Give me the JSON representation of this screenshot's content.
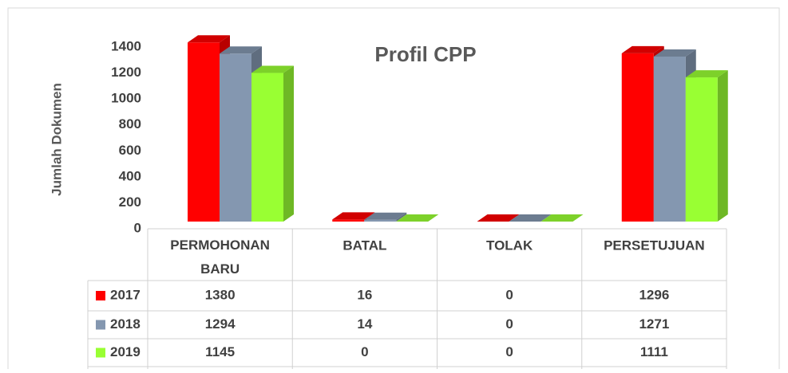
{
  "chart_data": {
    "type": "bar3d",
    "title": "Profil CPP",
    "y_label": "Jumlah Dokumen",
    "categories": [
      "PERMOHONAN BARU",
      "BATAL",
      "TOLAK",
      "PERSETUJUAN"
    ],
    "series": [
      {
        "name": "2017",
        "color": "#ff0000",
        "values": [
          1380,
          16,
          0,
          1296
        ]
      },
      {
        "name": "2018",
        "color": "#8497b0",
        "values": [
          1294,
          14,
          0,
          1271
        ]
      },
      {
        "name": "2019",
        "color": "#99ff33",
        "values": [
          1145,
          0,
          0,
          1111
        ]
      }
    ],
    "ylim": [
      0,
      1400
    ],
    "yticks": [
      0,
      200,
      400,
      600,
      800,
      1000,
      1200,
      1400
    ],
    "data_table": true
  }
}
